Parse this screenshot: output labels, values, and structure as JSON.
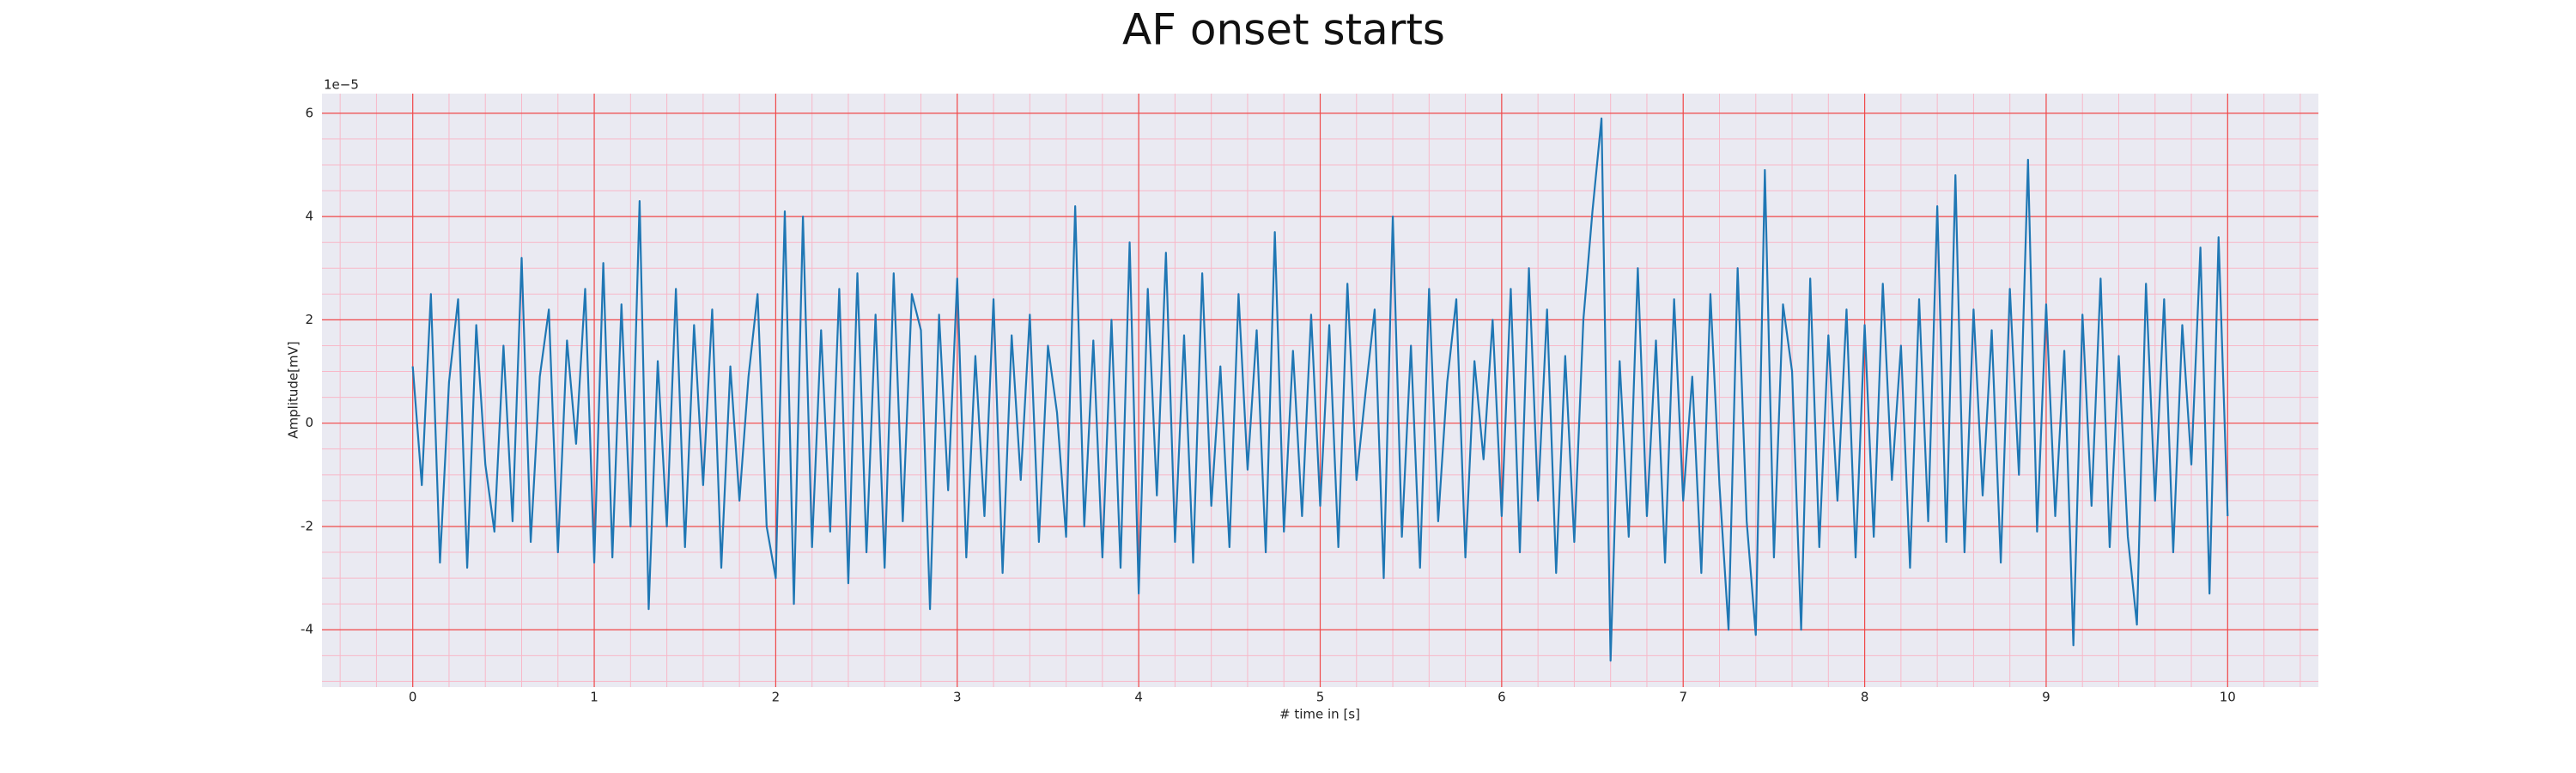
{
  "chart_data": {
    "type": "line",
    "title": "AF onset starts",
    "xlabel": "# time in [s]",
    "ylabel": "Amplitude[mV]",
    "y_offset_label": "1e−5",
    "color": "#1f77b4",
    "grid": true,
    "minor_grid": true,
    "xlim": [
      -0.5,
      10.5
    ],
    "ylim": [
      -5.11,
      6.38
    ],
    "xticks": [
      0,
      1,
      2,
      3,
      4,
      5,
      6,
      7,
      8,
      9,
      10
    ],
    "yticks": [
      -4,
      -2,
      0,
      2,
      4,
      6
    ],
    "x": [
      0,
      0.05,
      0.1,
      0.15,
      0.2,
      0.25,
      0.3,
      0.35,
      0.4,
      0.45,
      0.5,
      0.55,
      0.6,
      0.65,
      0.7,
      0.75,
      0.8,
      0.85,
      0.9,
      0.95,
      1,
      1.05,
      1.1,
      1.15,
      1.2,
      1.25,
      1.3,
      1.35,
      1.4,
      1.45,
      1.5,
      1.55,
      1.6,
      1.65,
      1.7,
      1.75,
      1.8,
      1.85,
      1.9,
      1.95,
      2,
      2.05,
      2.1,
      2.15,
      2.2,
      2.25,
      2.3,
      2.35,
      2.4,
      2.45,
      2.5,
      2.55,
      2.6,
      2.65,
      2.7,
      2.75,
      2.8,
      2.85,
      2.9,
      2.95,
      3,
      3.05,
      3.1,
      3.15,
      3.2,
      3.25,
      3.3,
      3.35,
      3.4,
      3.45,
      3.5,
      3.55,
      3.6,
      3.65,
      3.7,
      3.75,
      3.8,
      3.85,
      3.9,
      3.95,
      4,
      4.05,
      4.1,
      4.15,
      4.2,
      4.25,
      4.3,
      4.35,
      4.4,
      4.45,
      4.5,
      4.55,
      4.6,
      4.65,
      4.7,
      4.75,
      4.8,
      4.85,
      4.9,
      4.95,
      5,
      5.05,
      5.1,
      5.15,
      5.2,
      5.25,
      5.3,
      5.35,
      5.4,
      5.45,
      5.5,
      5.55,
      5.6,
      5.65,
      5.7,
      5.75,
      5.8,
      5.85,
      5.9,
      5.95,
      6,
      6.05,
      6.1,
      6.15,
      6.2,
      6.25,
      6.3,
      6.35,
      6.4,
      6.45,
      6.5,
      6.55,
      6.6,
      6.65,
      6.7,
      6.75,
      6.8,
      6.85,
      6.9,
      6.95,
      7,
      7.05,
      7.1,
      7.15,
      7.2,
      7.25,
      7.3,
      7.35,
      7.4,
      7.45,
      7.5,
      7.55,
      7.6,
      7.65,
      7.7,
      7.75,
      7.8,
      7.85,
      7.9,
      7.95,
      8,
      8.05,
      8.1,
      8.15,
      8.2,
      8.25,
      8.3,
      8.35,
      8.4,
      8.45,
      8.5,
      8.55,
      8.6,
      8.65,
      8.7,
      8.75,
      8.8,
      8.85,
      8.9,
      8.95,
      9,
      9.05,
      9.1,
      9.15,
      9.2,
      9.25,
      9.3,
      9.35,
      9.4,
      9.45,
      9.5,
      9.55,
      9.6,
      9.65,
      9.7,
      9.75,
      9.8,
      9.85,
      9.9,
      9.95,
      10
    ],
    "values": [
      1.1,
      -1.2,
      2.5,
      -2.7,
      0.8,
      2.4,
      -2.8,
      1.9,
      -0.8,
      -2.1,
      1.5,
      -1.9,
      3.2,
      -2.3,
      0.9,
      2.2,
      -2.5,
      1.6,
      -0.4,
      2.6,
      -2.7,
      3.1,
      -2.6,
      2.3,
      -2.0,
      4.3,
      -3.6,
      1.2,
      -2.0,
      2.6,
      -2.4,
      1.9,
      -1.2,
      2.2,
      -2.8,
      1.1,
      -1.5,
      0.9,
      2.5,
      -2.0,
      -3.0,
      4.1,
      -3.5,
      4.0,
      -2.4,
      1.8,
      -2.1,
      2.6,
      -3.1,
      2.9,
      -2.5,
      2.1,
      -2.8,
      2.9,
      -1.9,
      2.5,
      1.8,
      -3.6,
      2.1,
      -1.3,
      2.8,
      -2.6,
      1.3,
      -1.8,
      2.4,
      -2.9,
      1.7,
      -1.1,
      2.1,
      -2.3,
      1.5,
      0.2,
      -2.2,
      4.2,
      -2.0,
      1.6,
      -2.6,
      2.0,
      -2.8,
      3.5,
      -3.3,
      2.6,
      -1.4,
      3.3,
      -2.3,
      1.7,
      -2.7,
      2.9,
      -1.6,
      1.1,
      -2.4,
      2.5,
      -0.9,
      1.8,
      -2.5,
      3.7,
      -2.1,
      1.4,
      -1.8,
      2.1,
      -1.6,
      1.9,
      -2.4,
      2.7,
      -1.1,
      0.6,
      2.2,
      -3.0,
      4.0,
      -2.2,
      1.5,
      -2.8,
      2.6,
      -1.9,
      0.8,
      2.4,
      -2.6,
      1.2,
      -0.7,
      2.0,
      -1.8,
      2.6,
      -2.5,
      3.0,
      -1.5,
      2.2,
      -2.9,
      1.3,
      -2.3,
      2.0,
      4.1,
      5.9,
      -4.6,
      1.2,
      -2.2,
      3.0,
      -1.8,
      1.6,
      -2.7,
      2.4,
      -1.5,
      0.9,
      -2.9,
      2.5,
      -1.2,
      -4.0,
      3.0,
      -1.9,
      -4.1,
      4.9,
      -2.6,
      2.3,
      1.0,
      -4.0,
      2.8,
      -2.4,
      1.7,
      -1.5,
      2.2,
      -2.6,
      1.9,
      -2.2,
      2.7,
      -1.1,
      1.5,
      -2.8,
      2.4,
      -1.9,
      4.2,
      -2.3,
      4.8,
      -2.5,
      2.2,
      -1.4,
      1.8,
      -2.7,
      2.6,
      -1.0,
      5.1,
      -2.1,
      2.3,
      -1.8,
      1.4,
      -4.3,
      2.1,
      -1.6,
      2.8,
      -2.4,
      1.3,
      -2.2,
      -3.9,
      2.7,
      -1.5,
      2.4,
      -2.5,
      1.9,
      -0.8,
      3.4,
      -3.3,
      3.6,
      -1.8
    ]
  }
}
